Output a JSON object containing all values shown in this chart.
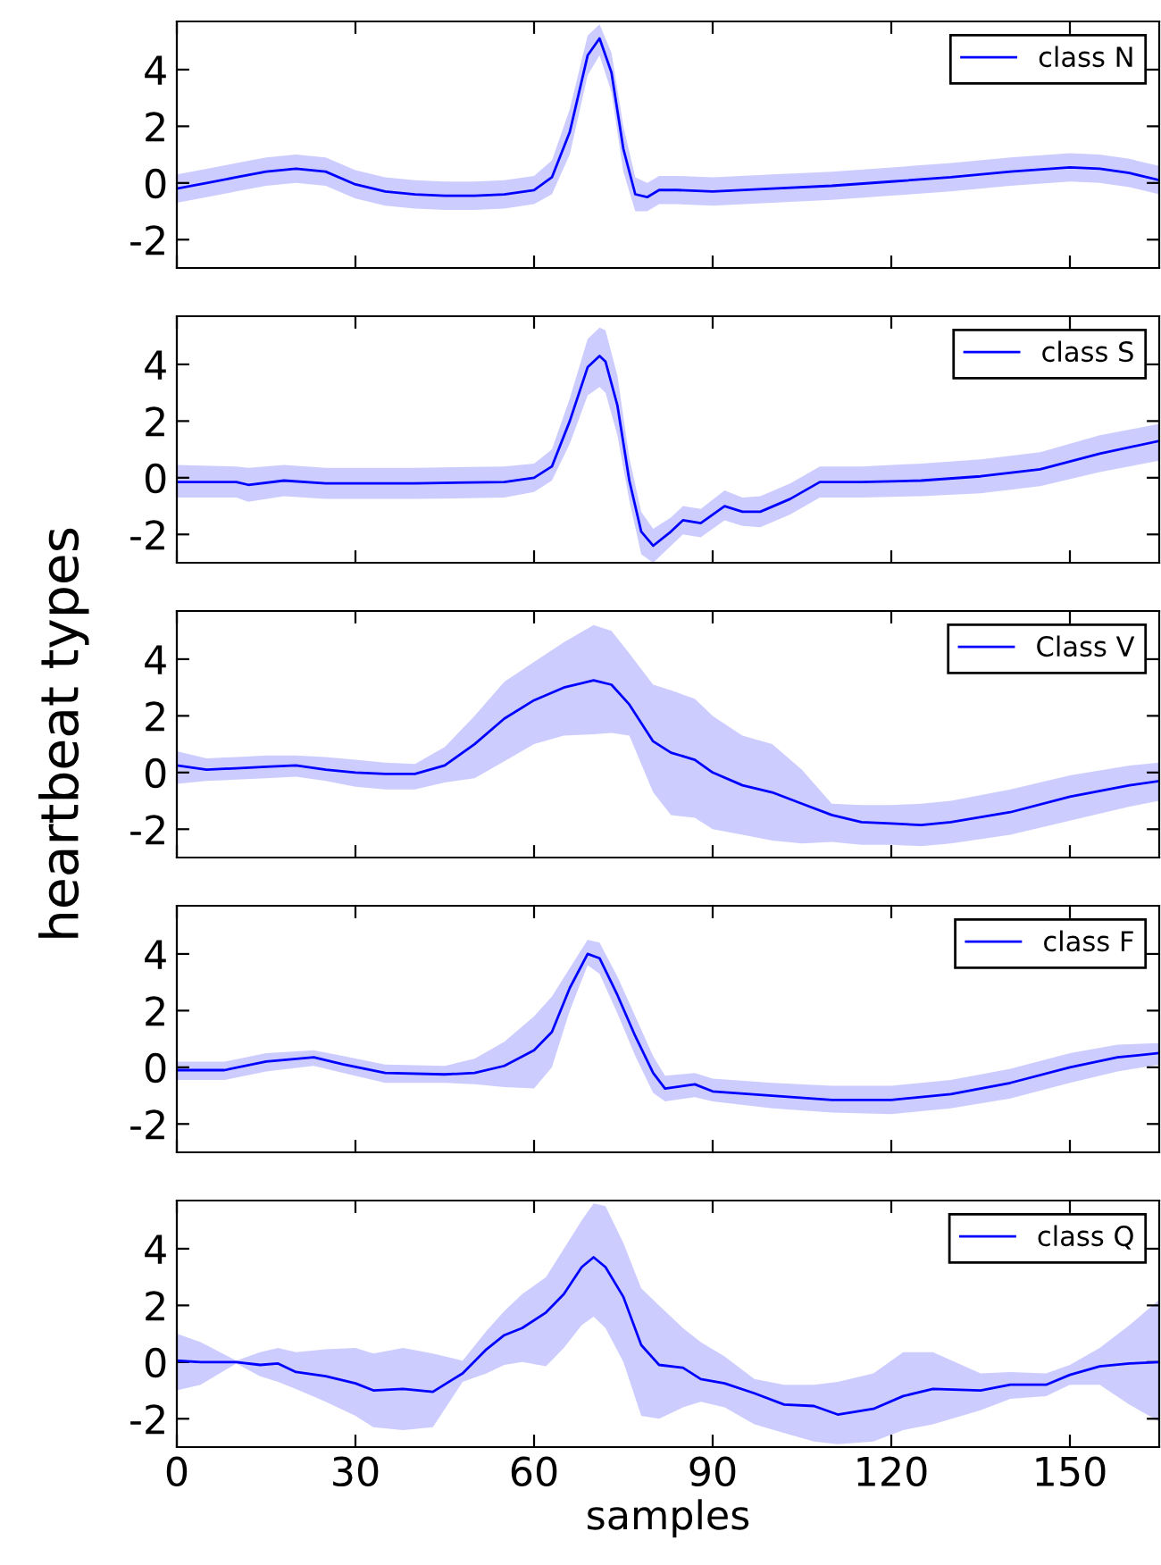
{
  "chart_data": [
    {
      "type": "line",
      "x": [
        0,
        5,
        10,
        15,
        20,
        25,
        30,
        35,
        40,
        45,
        50,
        55,
        60,
        63,
        66,
        69,
        71,
        73,
        75,
        77,
        79,
        81,
        84,
        90,
        100,
        110,
        120,
        130,
        140,
        150,
        155,
        160,
        165
      ],
      "xlim": [
        0,
        165
      ],
      "ylim": [
        -3,
        5.7
      ],
      "xticks": [
        0,
        30,
        60,
        90,
        120,
        150
      ],
      "yticks": [
        -2,
        0,
        2,
        4
      ],
      "tick_labels": "y",
      "legend": "top right",
      "grid": false,
      "series": [
        {
          "name": "class N",
          "color": "#0000ff",
          "values": [
            -0.2,
            0,
            0.2,
            0.4,
            0.5,
            0.4,
            -0.05,
            -0.3,
            -0.4,
            -0.45,
            -0.45,
            -0.4,
            -0.25,
            0.2,
            1.8,
            4.5,
            5.1,
            3.9,
            1.2,
            -0.4,
            -0.5,
            -0.25,
            -0.25,
            -0.3,
            -0.2,
            -0.1,
            0.05,
            0.2,
            0.4,
            0.55,
            0.5,
            0.35,
            0.1
          ],
          "lower": [
            -0.7,
            -0.5,
            -0.3,
            -0.1,
            0,
            -0.1,
            -0.55,
            -0.8,
            -0.9,
            -0.95,
            -0.95,
            -0.9,
            -0.75,
            -0.4,
            1.0,
            3.8,
            4.5,
            3.2,
            0.4,
            -1.0,
            -1.0,
            -0.75,
            -0.75,
            -0.8,
            -0.7,
            -0.6,
            -0.45,
            -0.3,
            -0.1,
            0.05,
            0,
            -0.15,
            -0.4
          ],
          "upper": [
            0.3,
            0.5,
            0.7,
            0.9,
            1.0,
            0.9,
            0.45,
            0.2,
            0.1,
            0.05,
            0.05,
            0.1,
            0.25,
            0.8,
            2.6,
            5.2,
            5.6,
            4.6,
            2.0,
            0.2,
            0,
            0.25,
            0.25,
            0.2,
            0.3,
            0.4,
            0.55,
            0.7,
            0.9,
            1.05,
            1.0,
            0.85,
            0.6
          ]
        }
      ]
    },
    {
      "type": "line",
      "x": [
        0,
        10,
        12,
        18,
        25,
        40,
        55,
        60,
        63,
        66,
        69,
        71,
        72,
        74,
        76,
        78,
        80,
        83,
        85,
        88,
        92,
        95,
        98,
        103,
        108,
        115,
        125,
        135,
        145,
        155,
        165
      ],
      "xlim": [
        0,
        165
      ],
      "ylim": [
        -3,
        5.7
      ],
      "xticks": [
        0,
        30,
        60,
        90,
        120,
        150
      ],
      "yticks": [
        -2,
        0,
        2,
        4
      ],
      "tick_labels": "y",
      "legend": "top right",
      "grid": false,
      "series": [
        {
          "name": "class S",
          "color": "#0000ff",
          "values": [
            -0.15,
            -0.15,
            -0.25,
            -0.1,
            -0.2,
            -0.2,
            -0.15,
            0,
            0.4,
            2.0,
            3.9,
            4.3,
            4.1,
            2.55,
            -0.1,
            -1.9,
            -2.4,
            -1.9,
            -1.5,
            -1.6,
            -1.0,
            -1.2,
            -1.2,
            -0.75,
            -0.15,
            -0.15,
            -0.1,
            0.05,
            0.3,
            0.85,
            1.3
          ],
          "lower": [
            -0.7,
            -0.7,
            -0.85,
            -0.65,
            -0.75,
            -0.75,
            -0.7,
            -0.5,
            -0.1,
            1.2,
            2.9,
            3.2,
            3.0,
            1.5,
            -0.8,
            -2.7,
            -3.0,
            -2.4,
            -2.0,
            -2.1,
            -1.5,
            -1.7,
            -1.75,
            -1.3,
            -0.7,
            -0.7,
            -0.65,
            -0.55,
            -0.3,
            0.2,
            0.6
          ],
          "upper": [
            0.45,
            0.4,
            0.35,
            0.45,
            0.35,
            0.35,
            0.4,
            0.5,
            1.0,
            2.8,
            4.9,
            5.3,
            5.2,
            3.6,
            0.7,
            -1.2,
            -1.8,
            -1.4,
            -1.0,
            -1.1,
            -0.45,
            -0.7,
            -0.65,
            -0.2,
            0.4,
            0.4,
            0.5,
            0.65,
            0.9,
            1.5,
            1.9
          ]
        }
      ]
    },
    {
      "type": "line",
      "ylabel": "heartbeat types",
      "x": [
        0,
        5,
        10,
        15,
        20,
        25,
        30,
        35,
        40,
        45,
        50,
        55,
        60,
        65,
        70,
        73,
        76,
        80,
        83,
        87,
        90,
        95,
        100,
        105,
        110,
        115,
        120,
        125,
        130,
        140,
        150,
        160,
        165
      ],
      "xlim": [
        0,
        165
      ],
      "ylim": [
        -3,
        5.7
      ],
      "xticks": [
        0,
        30,
        60,
        90,
        120,
        150
      ],
      "yticks": [
        -2,
        0,
        2,
        4
      ],
      "tick_labels": "y",
      "legend": "top right",
      "grid": false,
      "series": [
        {
          "name": "Class V",
          "color": "#0000ff",
          "values": [
            0.25,
            0.1,
            0.15,
            0.2,
            0.25,
            0.1,
            0,
            -0.05,
            -0.05,
            0.25,
            1.0,
            1.9,
            2.55,
            3.0,
            3.25,
            3.1,
            2.4,
            1.1,
            0.7,
            0.45,
            0,
            -0.45,
            -0.7,
            -1.1,
            -1.5,
            -1.75,
            -1.8,
            -1.85,
            -1.75,
            -1.4,
            -0.85,
            -0.45,
            -0.3
          ],
          "lower": [
            -0.4,
            -0.3,
            -0.25,
            -0.2,
            -0.15,
            -0.3,
            -0.5,
            -0.6,
            -0.6,
            -0.35,
            -0.2,
            0.4,
            1.0,
            1.3,
            1.35,
            1.4,
            1.3,
            -0.7,
            -1.5,
            -1.6,
            -2.0,
            -2.2,
            -2.4,
            -2.5,
            -2.45,
            -2.55,
            -2.55,
            -2.6,
            -2.5,
            -2.2,
            -1.7,
            -1.2,
            -1.0
          ],
          "upper": [
            0.75,
            0.5,
            0.55,
            0.6,
            0.6,
            0.55,
            0.45,
            0.35,
            0.3,
            0.9,
            2.0,
            3.2,
            3.9,
            4.6,
            5.2,
            5.0,
            4.2,
            3.1,
            2.9,
            2.6,
            2.0,
            1.3,
            1.0,
            0.1,
            -1.1,
            -1.15,
            -1.15,
            -1.1,
            -1.0,
            -0.6,
            -0.1,
            0.25,
            0.35
          ]
        }
      ]
    },
    {
      "type": "line",
      "x": [
        0,
        8,
        15,
        23,
        28,
        35,
        45,
        50,
        55,
        60,
        63,
        66,
        69,
        71,
        74,
        77,
        80,
        82,
        87,
        90,
        100,
        110,
        120,
        130,
        140,
        150,
        158,
        165
      ],
      "xlim": [
        0,
        165
      ],
      "ylim": [
        -3,
        5.7
      ],
      "xticks": [
        0,
        30,
        60,
        90,
        120,
        150
      ],
      "yticks": [
        -2,
        0,
        2,
        4
      ],
      "tick_labels": "y",
      "legend": "top right",
      "grid": false,
      "series": [
        {
          "name": "class F",
          "color": "#0000ff",
          "values": [
            -0.1,
            -0.1,
            0.2,
            0.35,
            0.1,
            -0.2,
            -0.25,
            -0.2,
            0.05,
            0.6,
            1.25,
            2.8,
            4.0,
            3.85,
            2.55,
            1.1,
            -0.2,
            -0.75,
            -0.6,
            -0.85,
            -1.0,
            -1.15,
            -1.15,
            -0.95,
            -0.55,
            0,
            0.35,
            0.5
          ],
          "lower": [
            -0.45,
            -0.45,
            -0.15,
            0.05,
            -0.2,
            -0.55,
            -0.55,
            -0.6,
            -0.7,
            -0.75,
            0,
            2.0,
            3.6,
            3.3,
            1.9,
            0.4,
            -0.9,
            -1.2,
            -1.05,
            -1.2,
            -1.45,
            -1.6,
            -1.65,
            -1.45,
            -1.1,
            -0.55,
            -0.15,
            0.1
          ],
          "upper": [
            0.2,
            0.2,
            0.5,
            0.6,
            0.4,
            0.1,
            0.05,
            0.3,
            0.9,
            1.8,
            2.5,
            3.5,
            4.5,
            4.4,
            3.2,
            1.8,
            0.4,
            -0.3,
            -0.2,
            -0.4,
            -0.55,
            -0.65,
            -0.65,
            -0.45,
            -0.05,
            0.5,
            0.8,
            0.85
          ]
        }
      ]
    },
    {
      "type": "line",
      "xlabel": "samples",
      "x": [
        0,
        4,
        10,
        14,
        17,
        20,
        25,
        30,
        33,
        38,
        43,
        48,
        52,
        55,
        58,
        62,
        65,
        68,
        70,
        72,
        75,
        78,
        81,
        85,
        88,
        92,
        97,
        102,
        107,
        111,
        117,
        122,
        127,
        135,
        140,
        146,
        150,
        155,
        160,
        165
      ],
      "xlim": [
        0,
        165
      ],
      "ylim": [
        -3,
        5.7
      ],
      "xticks": [
        0,
        30,
        60,
        90,
        120,
        150
      ],
      "yticks": [
        -2,
        0,
        2,
        4
      ],
      "legend": "top right",
      "grid": false,
      "series": [
        {
          "name": "class Q",
          "color": "#0000ff",
          "values": [
            0.05,
            0,
            0,
            -0.1,
            -0.05,
            -0.35,
            -0.5,
            -0.75,
            -1.0,
            -0.95,
            -1.05,
            -0.4,
            0.45,
            0.95,
            1.2,
            1.75,
            2.4,
            3.35,
            3.7,
            3.35,
            2.3,
            0.6,
            -0.1,
            -0.2,
            -0.6,
            -0.75,
            -1.1,
            -1.5,
            -1.55,
            -1.85,
            -1.65,
            -1.2,
            -0.95,
            -1.0,
            -0.8,
            -0.8,
            -0.45,
            -0.15,
            -0.05,
            0
          ],
          "lower": [
            -1.0,
            -0.8,
            -0.05,
            -0.5,
            -0.7,
            -0.95,
            -1.4,
            -1.9,
            -2.3,
            -2.4,
            -2.3,
            -0.7,
            -0.4,
            -0.1,
            0,
            -0.15,
            0.5,
            1.3,
            1.6,
            1.2,
            0,
            -1.9,
            -2.0,
            -1.6,
            -1.4,
            -1.6,
            -2.2,
            -2.5,
            -2.8,
            -2.9,
            -2.8,
            -2.4,
            -2.2,
            -1.7,
            -1.3,
            -1.2,
            -0.8,
            -0.8,
            -1.5,
            -2.1
          ],
          "upper": [
            1.0,
            0.7,
            0.05,
            0.35,
            0.5,
            0.35,
            0.45,
            0.5,
            0.3,
            0.5,
            0.3,
            0.05,
            1.1,
            1.8,
            2.4,
            3.0,
            4.0,
            5.0,
            5.6,
            5.5,
            4.2,
            2.6,
            2.0,
            1.2,
            0.7,
            0.2,
            -0.6,
            -0.8,
            -0.8,
            -0.7,
            -0.4,
            0.35,
            0.35,
            -0.4,
            -0.35,
            -0.4,
            -0.1,
            0.5,
            1.3,
            2.2
          ]
        }
      ]
    }
  ]
}
